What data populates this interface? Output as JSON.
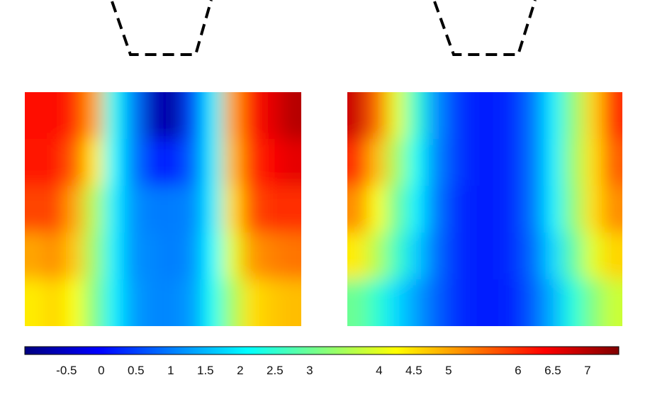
{
  "chart_data": {
    "type": "heatmap",
    "colormap": "jet",
    "clim": [
      -1.1,
      7.45
    ],
    "cticks": [
      -0.5,
      0,
      0.5,
      1,
      1.5,
      2,
      2.5,
      3,
      4,
      4.5,
      5,
      6,
      6.5,
      7
    ],
    "panels": [
      {
        "values": [
          [
            6.3,
            6.4,
            6.0,
            5.0,
            2.2,
            1.0,
            -0.6,
            -0.8,
            0.6,
            2.0,
            5.0,
            6.2,
            6.6,
            7.0
          ],
          [
            6.2,
            6.2,
            5.6,
            4.4,
            2.1,
            1.0,
            0.3,
            0.2,
            0.8,
            2.0,
            4.8,
            6.0,
            6.4,
            6.6
          ],
          [
            5.8,
            5.8,
            5.0,
            3.6,
            2.0,
            1.2,
            1.0,
            1.0,
            1.1,
            2.0,
            4.5,
            5.7,
            6.0,
            6.0
          ],
          [
            5.0,
            5.2,
            4.7,
            3.4,
            2.0,
            1.2,
            1.1,
            1.0,
            1.2,
            2.1,
            4.0,
            5.1,
            5.3,
            5.4
          ],
          [
            4.4,
            4.6,
            4.2,
            3.2,
            2.0,
            1.3,
            1.1,
            1.1,
            1.3,
            2.2,
            3.5,
            4.5,
            4.7,
            4.8
          ]
        ]
      },
      {
        "values": [
          [
            6.8,
            5.5,
            4.0,
            2.5,
            1.2,
            0.5,
            0.2,
            0.2,
            0.4,
            1.0,
            2.0,
            3.3,
            4.6,
            6.0
          ],
          [
            6.0,
            4.8,
            3.5,
            2.2,
            1.1,
            0.5,
            0.2,
            0.2,
            0.4,
            1.0,
            2.0,
            3.4,
            4.5,
            5.6
          ],
          [
            5.2,
            4.2,
            3.0,
            2.0,
            1.0,
            0.4,
            0.2,
            0.2,
            0.4,
            1.0,
            2.0,
            3.3,
            4.5,
            5.2
          ],
          [
            4.4,
            3.6,
            2.6,
            1.7,
            0.9,
            0.4,
            0.2,
            0.2,
            0.4,
            0.9,
            1.8,
            2.9,
            4.0,
            4.6
          ],
          [
            3.0,
            2.5,
            1.8,
            1.3,
            0.8,
            0.4,
            0.2,
            0.2,
            0.3,
            0.8,
            1.5,
            2.4,
            3.2,
            3.8
          ]
        ]
      }
    ]
  }
}
